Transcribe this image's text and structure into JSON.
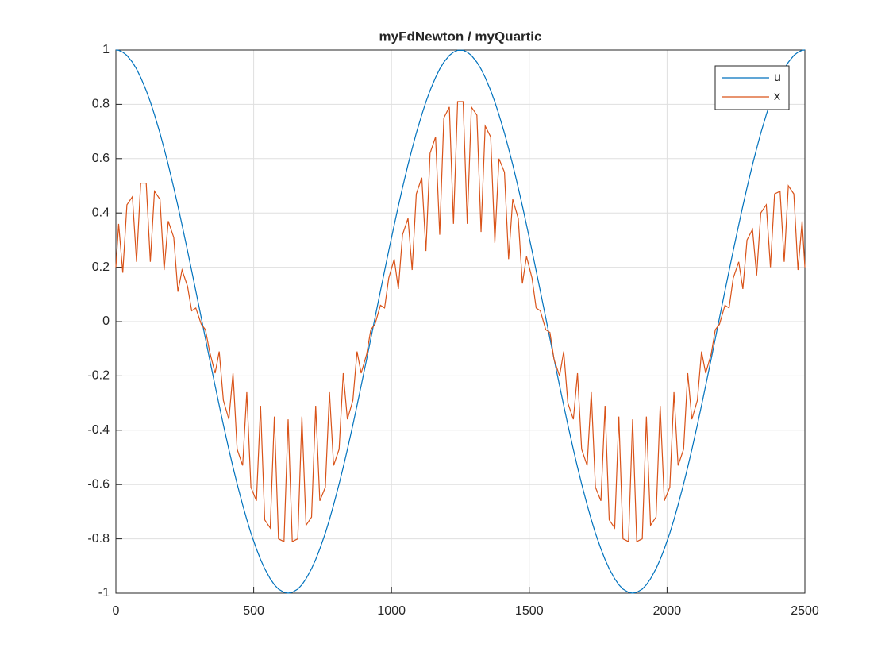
{
  "chart_data": {
    "type": "line",
    "title": "myFdNewton / myQuartic",
    "x": [
      0,
      10,
      25,
      40,
      60,
      75,
      90,
      110,
      125,
      140,
      160,
      175,
      190,
      210,
      225,
      240,
      260,
      275,
      290,
      310,
      325,
      340,
      360,
      375,
      390,
      410,
      425,
      440,
      460,
      475,
      490,
      510,
      525,
      540,
      560,
      575,
      590,
      610,
      625,
      640,
      660,
      675,
      690,
      710,
      725,
      740,
      760,
      775,
      790,
      810,
      825,
      840,
      860,
      875,
      890,
      910,
      925,
      940,
      960,
      975,
      990,
      1010,
      1025,
      1040,
      1060,
      1075,
      1090,
      1110,
      1125,
      1140,
      1160,
      1175,
      1190,
      1210,
      1225,
      1240,
      1260,
      1275,
      1290,
      1310,
      1325,
      1340,
      1360,
      1375,
      1390,
      1410,
      1425,
      1440,
      1460,
      1475,
      1490,
      1510,
      1525,
      1540,
      1560,
      1575,
      1590,
      1610,
      1625,
      1640,
      1660,
      1675,
      1690,
      1710,
      1725,
      1740,
      1760,
      1775,
      1790,
      1810,
      1825,
      1840,
      1860,
      1875,
      1890,
      1910,
      1925,
      1940,
      1960,
      1975,
      1990,
      2010,
      2025,
      2040,
      2060,
      2075,
      2090,
      2110,
      2125,
      2140,
      2160,
      2175,
      2190,
      2210,
      2225,
      2240,
      2260,
      2275,
      2290,
      2310,
      2325,
      2340,
      2360,
      2375,
      2390,
      2410,
      2425,
      2440,
      2460,
      2475,
      2490,
      2500
    ],
    "series": [
      {
        "name": "u",
        "color": "#0072bd",
        "values": [
          1,
          0.999,
          0.992,
          0.98,
          0.955,
          0.93,
          0.899,
          0.851,
          0.809,
          0.762,
          0.694,
          0.637,
          0.578,
          0.493,
          0.426,
          0.356,
          0.261,
          0.187,
          0.113,
          0.013,
          -0.063,
          -0.138,
          -0.236,
          -0.309,
          -0.38,
          -0.471,
          -0.536,
          -0.598,
          -0.675,
          -0.729,
          -0.779,
          -0.837,
          -0.876,
          -0.91,
          -0.947,
          -0.969,
          -0.985,
          -0.997,
          -1,
          -0.997,
          -0.985,
          -0.969,
          -0.947,
          -0.91,
          -0.876,
          -0.837,
          -0.779,
          -0.729,
          -0.675,
          -0.598,
          -0.536,
          -0.471,
          -0.38,
          -0.309,
          -0.236,
          -0.138,
          -0.063,
          0.013,
          0.113,
          0.187,
          0.261,
          0.356,
          0.426,
          0.493,
          0.578,
          0.637,
          0.694,
          0.762,
          0.809,
          0.851,
          0.899,
          0.93,
          0.955,
          0.98,
          0.992,
          0.999,
          0.999,
          0.992,
          0.98,
          0.955,
          0.93,
          0.899,
          0.851,
          0.809,
          0.762,
          0.694,
          0.637,
          0.578,
          0.493,
          0.426,
          0.356,
          0.261,
          0.187,
          0.113,
          0.013,
          -0.063,
          -0.138,
          -0.236,
          -0.309,
          -0.38,
          -0.471,
          -0.536,
          -0.598,
          -0.675,
          -0.729,
          -0.779,
          -0.837,
          -0.876,
          -0.91,
          -0.947,
          -0.969,
          -0.985,
          -0.997,
          -1,
          -0.997,
          -0.985,
          -0.969,
          -0.947,
          -0.91,
          -0.876,
          -0.837,
          -0.779,
          -0.729,
          -0.675,
          -0.598,
          -0.536,
          -0.471,
          -0.38,
          -0.309,
          -0.236,
          -0.138,
          -0.063,
          0.013,
          0.113,
          0.187,
          0.261,
          0.356,
          0.426,
          0.493,
          0.578,
          0.637,
          0.694,
          0.762,
          0.809,
          0.851,
          0.899,
          0.93,
          0.955,
          0.98,
          0.992,
          0.999,
          1
        ]
      },
      {
        "name": "x",
        "color": "#d95319",
        "values": [
          0.2,
          0.36,
          0.18,
          0.43,
          0.46,
          0.22,
          0.51,
          0.51,
          0.22,
          0.48,
          0.45,
          0.19,
          0.37,
          0.31,
          0.11,
          0.19,
          0.13,
          0.04,
          0.05,
          -0.01,
          -0.03,
          -0.11,
          -0.19,
          -0.11,
          -0.29,
          -0.36,
          -0.19,
          -0.47,
          -0.53,
          -0.26,
          -0.61,
          -0.66,
          -0.31,
          -0.73,
          -0.76,
          -0.35,
          -0.8,
          -0.81,
          -0.36,
          -0.81,
          -0.8,
          -0.35,
          -0.75,
          -0.72,
          -0.31,
          -0.66,
          -0.61,
          -0.26,
          -0.53,
          -0.47,
          -0.19,
          -0.36,
          -0.29,
          -0.11,
          -0.19,
          -0.12,
          -0.03,
          -0.01,
          0.06,
          0.05,
          0.16,
          0.23,
          0.12,
          0.32,
          0.38,
          0.19,
          0.47,
          0.53,
          0.26,
          0.62,
          0.68,
          0.32,
          0.75,
          0.79,
          0.36,
          0.81,
          0.81,
          0.36,
          0.79,
          0.76,
          0.33,
          0.72,
          0.68,
          0.29,
          0.6,
          0.55,
          0.23,
          0.45,
          0.38,
          0.14,
          0.24,
          0.16,
          0.05,
          0.04,
          -0.03,
          -0.04,
          -0.14,
          -0.2,
          -0.11,
          -0.3,
          -0.36,
          -0.19,
          -0.47,
          -0.53,
          -0.26,
          -0.61,
          -0.66,
          -0.31,
          -0.73,
          -0.76,
          -0.35,
          -0.8,
          -0.81,
          -0.36,
          -0.81,
          -0.8,
          -0.35,
          -0.75,
          -0.72,
          -0.31,
          -0.66,
          -0.61,
          -0.26,
          -0.53,
          -0.47,
          -0.19,
          -0.36,
          -0.29,
          -0.11,
          -0.19,
          -0.12,
          -0.03,
          -0.01,
          0.06,
          0.05,
          0.16,
          0.22,
          0.12,
          0.3,
          0.34,
          0.17,
          0.4,
          0.43,
          0.2,
          0.47,
          0.48,
          0.22,
          0.5,
          0.47,
          0.19,
          0.37,
          0.2
        ]
      }
    ],
    "xlim": [
      0,
      2500
    ],
    "xticks": [
      0,
      500,
      1000,
      1500,
      2000,
      2500
    ],
    "ylim": [
      -1,
      1
    ],
    "yticks": [
      -1,
      -0.8,
      -0.6,
      -0.4,
      -0.2,
      0,
      0.2,
      0.4,
      0.6,
      0.8,
      1
    ],
    "grid": true,
    "legend": "northeast"
  }
}
